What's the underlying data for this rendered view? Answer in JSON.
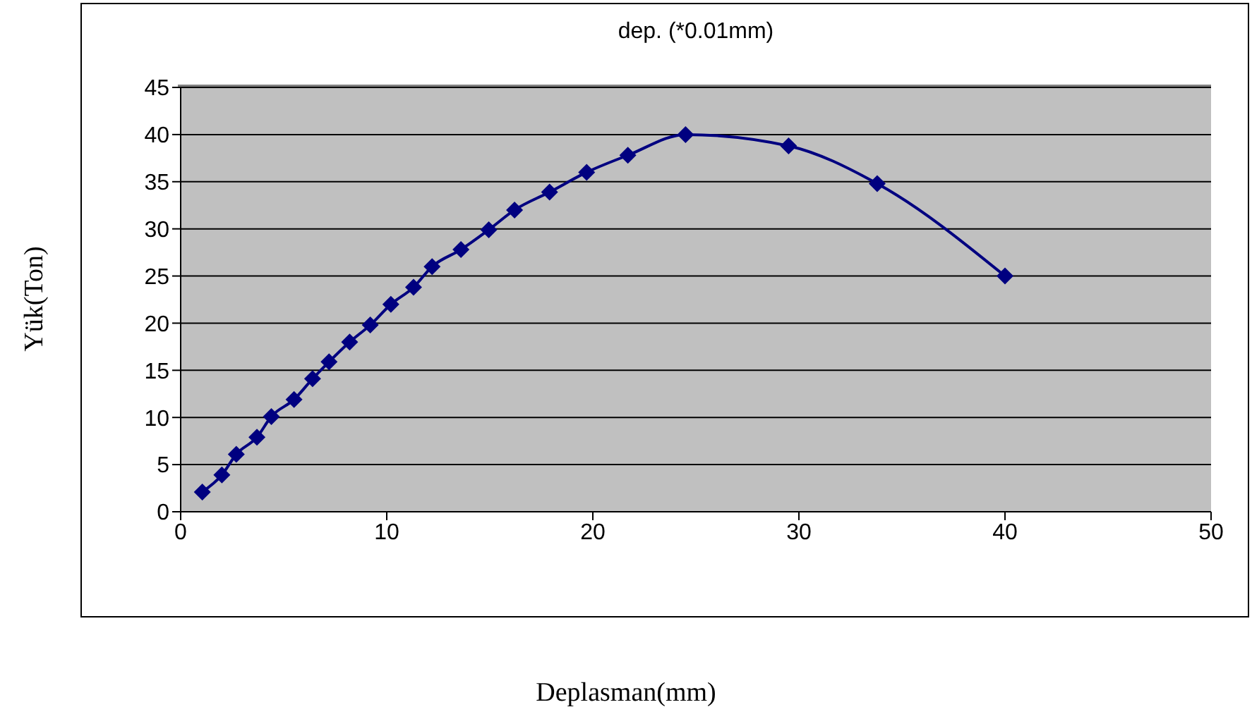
{
  "chart_data": {
    "type": "line",
    "title": "dep. (*0.01mm)",
    "xlabel": "Deplasman(mm)",
    "ylabel": "Yük(Ton)",
    "x": [
      1.05,
      2.0,
      2.7,
      3.7,
      4.4,
      5.5,
      6.4,
      7.2,
      8.2,
      9.2,
      10.2,
      11.3,
      12.2,
      13.6,
      14.95,
      16.2,
      17.9,
      19.7,
      21.7,
      24.5,
      29.5,
      33.8,
      40.0
    ],
    "series": [
      {
        "color": "#000080",
        "values": [
          2.1,
          3.9,
          6.1,
          7.9,
          10.1,
          11.9,
          14.1,
          15.9,
          18.0,
          19.8,
          22.0,
          23.8,
          26.0,
          27.8,
          29.9,
          32.0,
          33.9,
          36.0,
          37.8,
          40.0,
          38.8,
          34.8,
          25.0
        ]
      }
    ],
    "xlim": [
      0,
      50
    ],
    "xticks": [
      0,
      10,
      20,
      30,
      40,
      50
    ],
    "ylim": [
      0,
      45
    ],
    "yticks": [
      0,
      5,
      10,
      15,
      20,
      25,
      30,
      35,
      40,
      45
    ],
    "grid": "y",
    "marker": "diamond",
    "line_style": "solid",
    "legend": false
  }
}
